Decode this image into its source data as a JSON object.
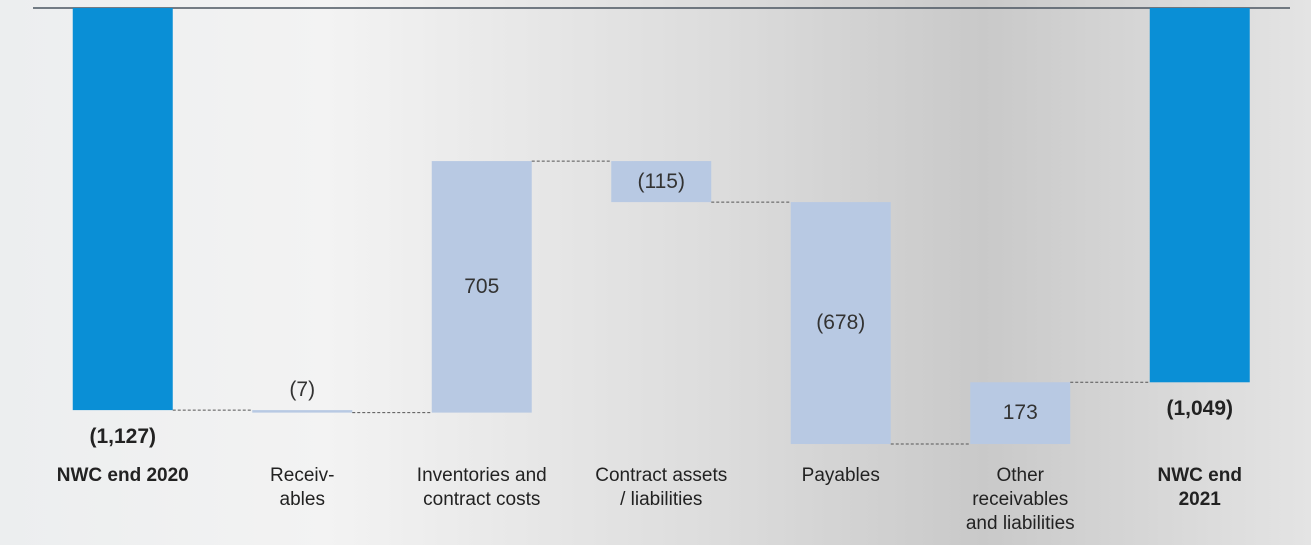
{
  "chart_data": {
    "type": "waterfall",
    "categories": [
      "NWC end 2020",
      "Receiv-\nables",
      "Inventories and\ncontract costs",
      "Contract assets\n/ liabilities",
      "Payables",
      "Other\nreceivables\nand liabilities",
      "NWC end 2021"
    ],
    "values": [
      -1127,
      -7,
      705,
      -115,
      -678,
      173,
      -1049
    ],
    "value_labels": [
      "(1,127)",
      "(7)",
      "705",
      "(115)",
      "(678)",
      "173",
      "(1,049)"
    ],
    "is_total": [
      true,
      false,
      false,
      false,
      false,
      false,
      true
    ],
    "total_color": "#0a8fd6",
    "color": "#b8c9e3",
    "ylim": [
      -1250,
      0
    ]
  }
}
